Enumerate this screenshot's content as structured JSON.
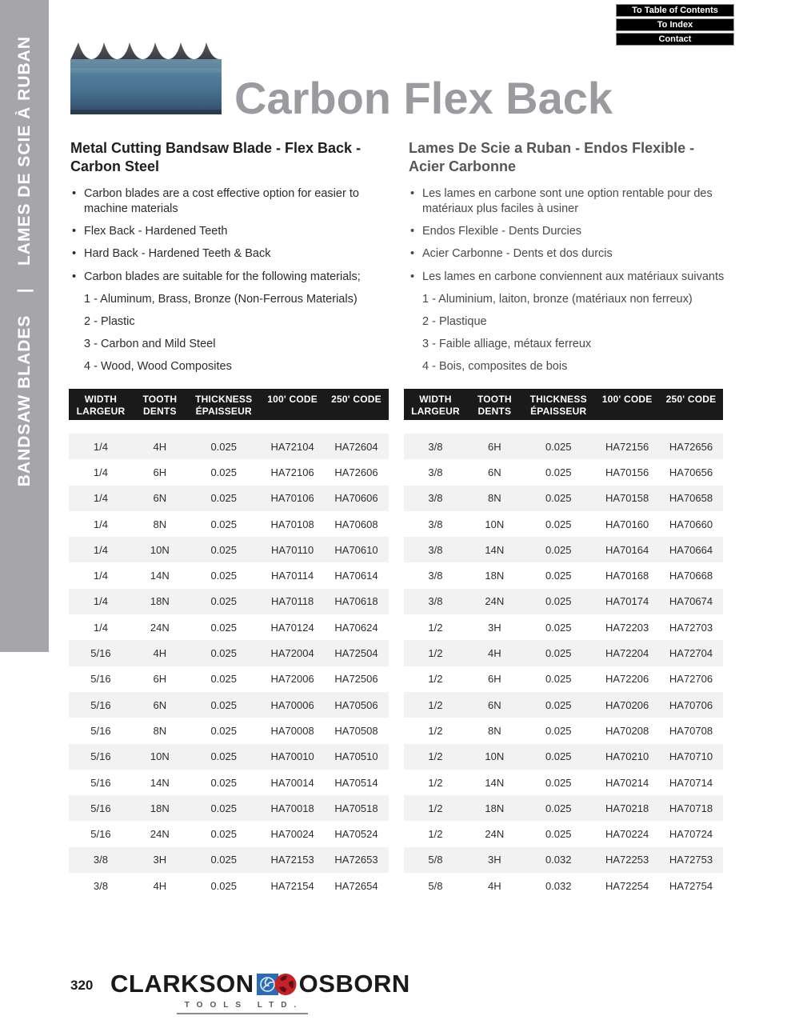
{
  "nav": {
    "links": [
      "To Table of Contents",
      "To Index",
      "Contact"
    ]
  },
  "sidebar": {
    "text": "BANDSAW BLADES    |    LAMES DE SCIE À RUBAN"
  },
  "title": "Carbon Flex Back",
  "sections": {
    "english": {
      "heading": "Metal Cutting Bandsaw Blade - Flex Back -  Carbon Steel",
      "bullets": [
        "Carbon blades are a cost effective option for easier to machine materials",
        "Flex Back - Hardened Teeth",
        "Hard Back - Hardened Teeth & Back",
        "Carbon blades are suitable for the following materials;"
      ],
      "materials": [
        "1 - Aluminum, Brass, Bronze (Non-Ferrous Materials)",
        "2 - Plastic",
        "3 - Carbon and Mild Steel",
        "4 - Wood, Wood Composites"
      ]
    },
    "french": {
      "heading": "Lames De Scie a Ruban - Endos Flexible - Acier Carbonne",
      "bullets": [
        "Les lames en carbone sont une option rentable pour des matériaux plus faciles à usiner",
        "Endos Flexible - Dents Durcies",
        "Acier Carbonne - Dents et dos durcis",
        "Les lames en carbone conviennent aux matériaux suivants"
      ],
      "materials": [
        "1 - Aluminium, laiton, bronze (matériaux non ferreux)",
        "2 - Plastique",
        "3 - Faible alliage, métaux ferreux",
        "4 - Bois, composites de bois"
      ]
    }
  },
  "tables": {
    "headers": [
      {
        "line1": "WIDTH",
        "line2": "LARGEUR"
      },
      {
        "line1": "TOOTH",
        "line2": "DENTS"
      },
      {
        "line1": "THICKNESS",
        "line2": "ÉPAISSEUR"
      },
      {
        "line1": "100' CODE",
        "line2": ""
      },
      {
        "line1": "250' CODE",
        "line2": ""
      }
    ],
    "left": {
      "rows": [
        [
          "1/4",
          "4H",
          "0.025",
          "HA72104",
          "HA72604"
        ],
        [
          "1/4",
          "6H",
          "0.025",
          "HA72106",
          "HA72606"
        ],
        [
          "1/4",
          "6N",
          "0.025",
          "HA70106",
          "HA70606"
        ],
        [
          "1/4",
          "8N",
          "0.025",
          "HA70108",
          "HA70608"
        ],
        [
          "1/4",
          "10N",
          "0.025",
          "HA70110",
          "HA70610"
        ],
        [
          "1/4",
          "14N",
          "0.025",
          "HA70114",
          "HA70614"
        ],
        [
          "1/4",
          "18N",
          "0.025",
          "HA70118",
          "HA70618"
        ],
        [
          "1/4",
          "24N",
          "0.025",
          "HA70124",
          "HA70624"
        ],
        [
          "5/16",
          "4H",
          "0.025",
          "HA72004",
          "HA72504"
        ],
        [
          "5/16",
          "6H",
          "0.025",
          "HA72006",
          "HA72506"
        ],
        [
          "5/16",
          "6N",
          "0.025",
          "HA70006",
          "HA70506"
        ],
        [
          "5/16",
          "8N",
          "0.025",
          "HA70008",
          "HA70508"
        ],
        [
          "5/16",
          "10N",
          "0.025",
          "HA70010",
          "HA70510"
        ],
        [
          "5/16",
          "14N",
          "0.025",
          "HA70014",
          "HA70514"
        ],
        [
          "5/16",
          "18N",
          "0.025",
          "HA70018",
          "HA70518"
        ],
        [
          "5/16",
          "24N",
          "0.025",
          "HA70024",
          "HA70524"
        ],
        [
          "3/8",
          "3H",
          "0.025",
          "HA72153",
          "HA72653"
        ],
        [
          "3/8",
          "4H",
          "0.025",
          "HA72154",
          "HA72654"
        ]
      ]
    },
    "right": {
      "rows": [
        [
          "3/8",
          "6H",
          "0.025",
          "HA72156",
          "HA72656"
        ],
        [
          "3/8",
          "6N",
          "0.025",
          "HA70156",
          "HA70656"
        ],
        [
          "3/8",
          "8N",
          "0.025",
          "HA70158",
          "HA70658"
        ],
        [
          "3/8",
          "10N",
          "0.025",
          "HA70160",
          "HA70660"
        ],
        [
          "3/8",
          "14N",
          "0.025",
          "HA70164",
          "HA70664"
        ],
        [
          "3/8",
          "18N",
          "0.025",
          "HA70168",
          "HA70668"
        ],
        [
          "3/8",
          "24N",
          "0.025",
          "HA70174",
          "HA70674"
        ],
        [
          "1/2",
          "3H",
          "0.025",
          "HA72203",
          "HA72703"
        ],
        [
          "1/2",
          "4H",
          "0.025",
          "HA72204",
          "HA72704"
        ],
        [
          "1/2",
          "6H",
          "0.025",
          "HA72206",
          "HA72706"
        ],
        [
          "1/2",
          "6N",
          "0.025",
          "HA70206",
          "HA70706"
        ],
        [
          "1/2",
          "8N",
          "0.025",
          "HA70208",
          "HA70708"
        ],
        [
          "1/2",
          "10N",
          "0.025",
          "HA70210",
          "HA70710"
        ],
        [
          "1/2",
          "14N",
          "0.025",
          "HA70214",
          "HA70714"
        ],
        [
          "1/2",
          "18N",
          "0.025",
          "HA70218",
          "HA70718"
        ],
        [
          "1/2",
          "24N",
          "0.025",
          "HA70224",
          "HA70724"
        ],
        [
          "5/8",
          "3H",
          "0.032",
          "HA72253",
          "HA72753"
        ],
        [
          "5/8",
          "4H",
          "0.032",
          "HA72254",
          "HA72754"
        ]
      ]
    }
  },
  "footer": {
    "page_number": "320",
    "brand_left": "CLARKSON",
    "brand_right": "OSBORN",
    "brand_sub": "TOOLS LTD."
  },
  "colors": {
    "sidebar_gray": "#a6a6aa",
    "title_gray": "#9b9b9f",
    "table_header_black": "#1a1a1a",
    "row_stripe": "#f2f2f3",
    "logo_blue": "#2a6cb7",
    "logo_red": "#c62128"
  }
}
